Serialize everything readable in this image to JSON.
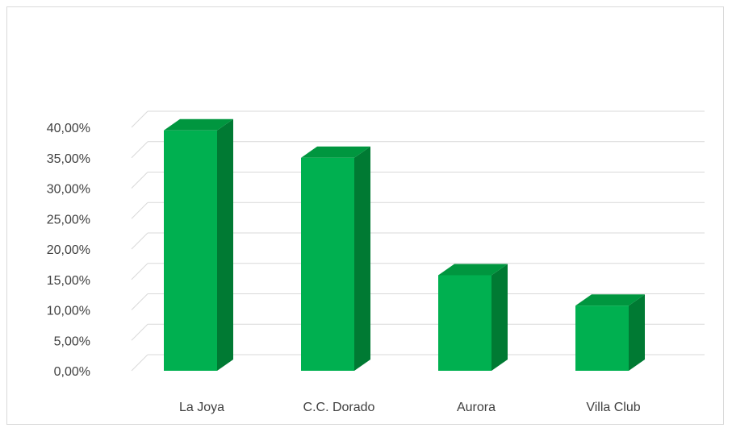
{
  "chart_data": {
    "type": "bar",
    "style": "3d-column",
    "categories": [
      "La Joya",
      "C.C. Dorado",
      "Aurora",
      "Villa Club"
    ],
    "values": [
      39.5,
      35.0,
      15.7,
      10.7
    ],
    "ylim": [
      0,
      40
    ],
    "yticks": [
      0,
      5,
      10,
      15,
      20,
      25,
      30,
      35,
      40
    ],
    "ytick_labels": [
      "0,00%",
      "5,00%",
      "10,00%",
      "15,00%",
      "20,00%",
      "25,00%",
      "30,00%",
      "35,00%",
      "40,00%"
    ],
    "grid": true,
    "legend": "none",
    "colors": {
      "front": "#00b050",
      "side": "#007a33",
      "top": "#00963f",
      "grid": "#d9d9d9"
    }
  }
}
